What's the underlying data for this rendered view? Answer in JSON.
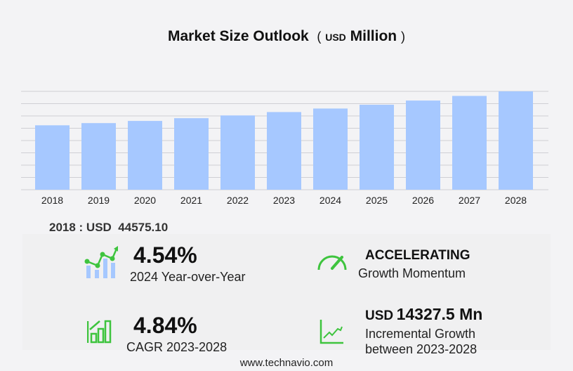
{
  "title": {
    "main": "Market Size Outlook",
    "paren_open": "(",
    "unit_small": "USD",
    "unit": "Million",
    "paren_close": ")"
  },
  "base_year": {
    "label": "2018 : USD",
    "value": "44575.10"
  },
  "kpis": {
    "yoy": {
      "value": "4.54%",
      "label": "2024 Year-over-Year",
      "icon": "growth-chart-icon"
    },
    "momentum": {
      "value": "ACCELERATING",
      "label": "Growth Momentum",
      "icon": "speedometer-icon"
    },
    "cagr": {
      "value": "4.84%",
      "label": "CAGR 2023-2028",
      "icon": "bar-chart-arrow-icon"
    },
    "incremental": {
      "prefix": "USD",
      "value": "14327.5 Mn",
      "label1": "Incremental Growth",
      "label2": "between 2023-2028",
      "icon": "trend-line-icon"
    }
  },
  "footer": "www.technavio.com",
  "colors": {
    "bar": "#a6c8ff",
    "accent": "#3ec43e",
    "grid": "#cfcfd4"
  },
  "chart_data": {
    "type": "bar",
    "categories": [
      "2018",
      "2019",
      "2020",
      "2021",
      "2022",
      "2023",
      "2024",
      "2025",
      "2026",
      "2027",
      "2028"
    ],
    "values": [
      44575.1,
      46100,
      47600,
      49500,
      51400,
      53741,
      56181,
      58800,
      61700,
      64900,
      68068
    ],
    "ylim": [
      0,
      68068
    ],
    "grid": true,
    "ylabel": "",
    "xlabel": ""
  }
}
